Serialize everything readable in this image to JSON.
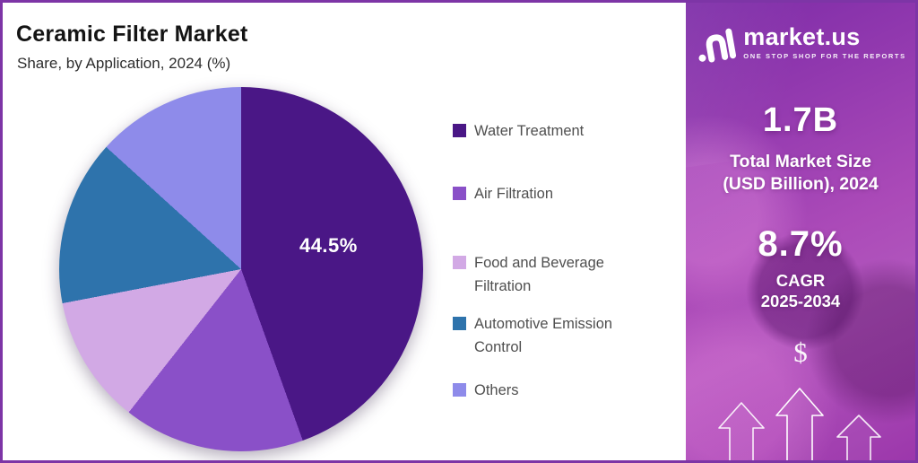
{
  "header": {
    "title": "Ceramic Filter Market",
    "subtitle": "Share, by Application, 2024 (%)"
  },
  "chart_data": {
    "type": "pie",
    "title": "Ceramic Filter Market Share, by Application, 2024 (%)",
    "unit": "%",
    "start_angle_deg": 0,
    "direction": "clockwise",
    "legend_position": "right",
    "segments": [
      {
        "label": "Water Treatment",
        "value": 44.5,
        "color": "#4a1786",
        "display_label": "44.5%"
      },
      {
        "label": "Air Filtration",
        "value": 16.1,
        "color": "#8a50c8",
        "display_label": ""
      },
      {
        "label": "Food and Beverage Filtration",
        "value": 11.4,
        "color": "#d2a9e5",
        "display_label": ""
      },
      {
        "label": "Automotive Emission Control",
        "value": 14.7,
        "color": "#2e73ac",
        "display_label": ""
      },
      {
        "label": "Others",
        "value": 13.3,
        "color": "#8e8bea",
        "display_label": ""
      }
    ]
  },
  "sidebar": {
    "logo": {
      "brand": "market.us",
      "tagline": "ONE STOP SHOP FOR THE REPORTS"
    },
    "market_size": {
      "value": "1.7B",
      "label_line1": "Total Market Size",
      "label_line2": "(USD Billion), 2024"
    },
    "cagr": {
      "value": "8.7%",
      "label_line1": "CAGR",
      "label_line2": "2025-2034"
    },
    "dollar_symbol": "$",
    "accent_colors": {
      "panel_gradient_start": "#7c2ba7",
      "panel_gradient_mid": "#ab4ab8",
      "border": "#7d35a6"
    }
  }
}
